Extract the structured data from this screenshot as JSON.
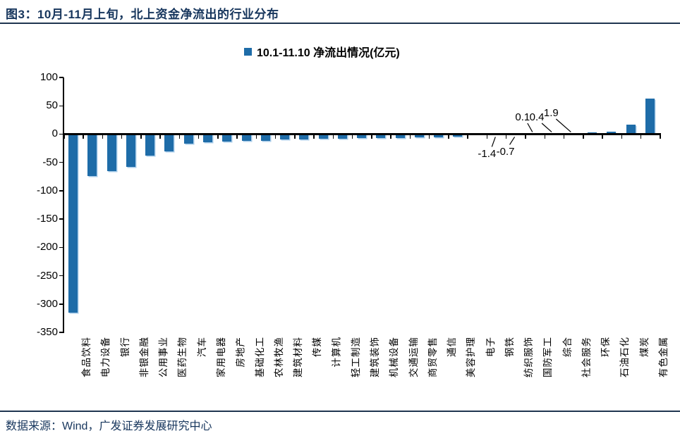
{
  "page": {
    "title": "图3：10月-11月上旬，北上资金净流出的行业分布"
  },
  "legend": {
    "label": "10.1-11.10 净流出情况(亿元)"
  },
  "footer": {
    "source": "数据来源：Wind，广发证券发展研究中心"
  },
  "colors": {
    "bar": "#1E6CA8",
    "bar_edge": "#A9CCE9",
    "accent_navy": "#17365D"
  },
  "chart_data": {
    "type": "bar",
    "title": "10.1-11.10 净流出情况(亿元)",
    "unit": "亿元",
    "categories": [
      "食品饮料",
      "电力设备",
      "银行",
      "非银金融",
      "公用事业",
      "医药生物",
      "汽车",
      "家用电器",
      "房地产",
      "基础化工",
      "农林牧渔",
      "建筑材料",
      "传媒",
      "计算机",
      "轻工制造",
      "建筑装饰",
      "机械设备",
      "交通运输",
      "商贸零售",
      "通信",
      "美容护理",
      "电子",
      "钢铁",
      "纺织服饰",
      "国防军工",
      "综合",
      "社会服务",
      "环保",
      "石油石化",
      "煤炭",
      "有色金属"
    ],
    "values": [
      -315,
      -74,
      -65,
      -58,
      -38,
      -31,
      -17,
      -15,
      -13,
      -12.5,
      -12,
      -10,
      -9,
      -8.5,
      -8,
      -7.5,
      -7,
      -6.5,
      -6,
      -5.5,
      -4,
      -2.2,
      -1.4,
      -0.7,
      0.1,
      0.4,
      1.9,
      3.5,
      4,
      17,
      63
    ],
    "yticks": [
      100,
      50,
      0,
      -50,
      -100,
      -150,
      -200,
      -250,
      -300,
      -350
    ],
    "ylim": [
      -350,
      100
    ],
    "grid": false,
    "legend_position": "top-center",
    "bar_color": "#1E6CA8",
    "annotations": [
      {
        "text": "-1.4",
        "category": "钢铁",
        "index": 22
      },
      {
        "text": "-0.7",
        "category": "纺织服饰",
        "index": 23
      },
      {
        "text": "0.1",
        "category": "国防军工",
        "index": 24
      },
      {
        "text": "0.4",
        "category": "综合",
        "index": 25
      },
      {
        "text": "1.9",
        "category": "社会服务",
        "index": 26
      }
    ]
  }
}
